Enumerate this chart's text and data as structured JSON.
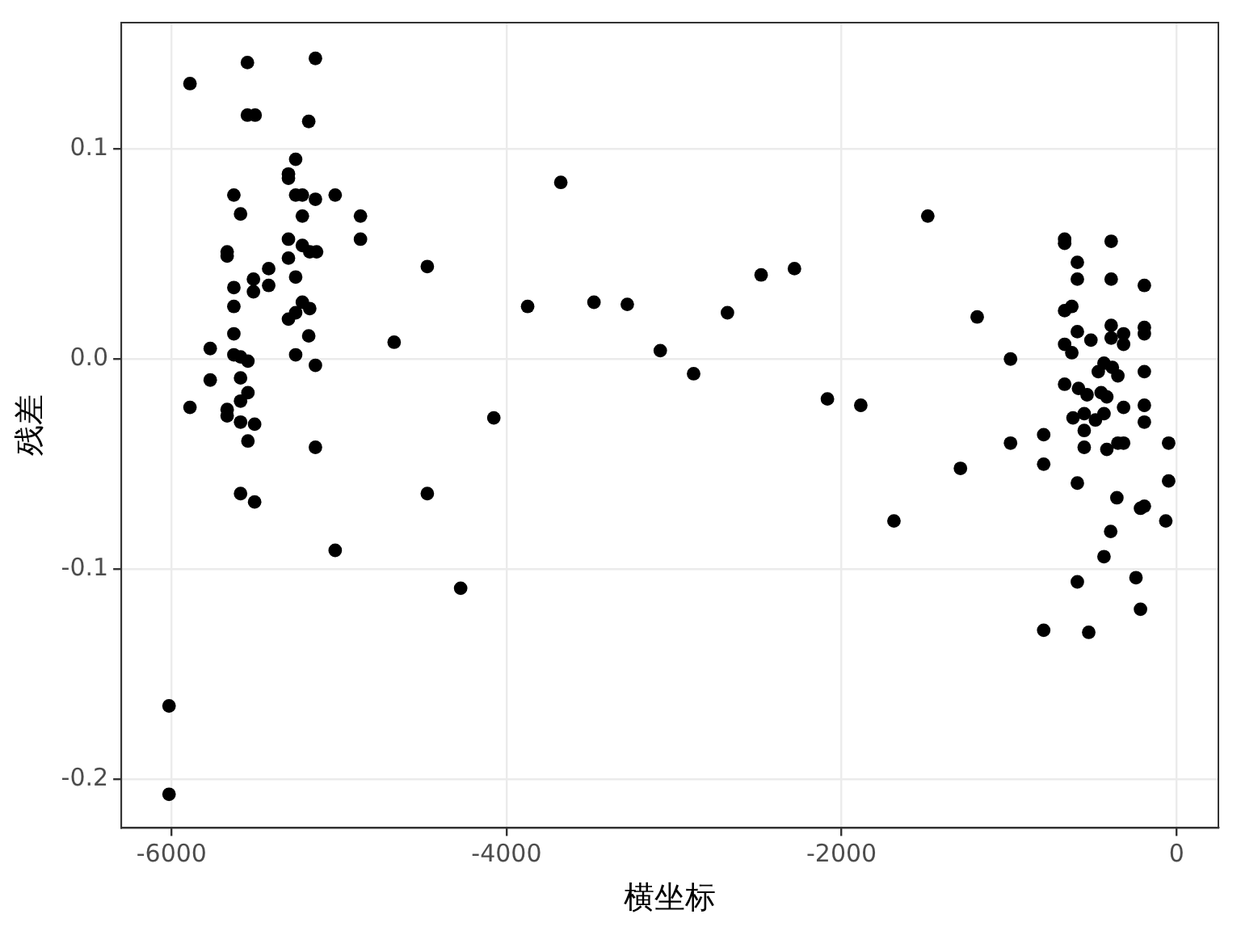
{
  "chart_data": {
    "type": "scatter",
    "xlabel": "横坐标",
    "ylabel": "残差",
    "xlim": [
      -6300,
      250
    ],
    "ylim": [
      -0.223,
      0.16
    ],
    "xticks": [
      -6000,
      -4000,
      -2000,
      0
    ],
    "yticks": [
      -0.2,
      -0.1,
      {
        "value": 0,
        "label": "0.0"
      },
      0.1
    ],
    "grid": true,
    "marker": "circle",
    "legend": false,
    "series": [
      {
        "color": "#000000",
        "x": [
          -6015,
          -6015,
          -5890,
          -5547,
          -5141,
          -5547,
          -5501,
          -5181,
          -5259,
          -5302,
          -5302,
          -5628,
          -5259,
          -5219,
          -5141,
          -5023,
          -5588,
          -5219,
          -4872,
          -4872,
          -5302,
          -5219,
          -5175,
          -5134,
          -5668,
          -5668,
          -5302,
          -5420,
          -5511,
          -5259,
          -5420,
          -5511,
          -5628,
          -5628,
          -5219,
          -5175,
          -5259,
          -5302,
          -5181,
          -5628,
          -5769,
          -5628,
          -5588,
          -5544,
          -5259,
          -5141,
          -5769,
          -5588,
          -5544,
          -5588,
          -5668,
          -5668,
          -5890,
          -5588,
          -5504,
          -5544,
          -5141,
          -5588,
          -5504,
          -5023,
          -4671,
          -4473,
          -4473,
          -4274,
          -4076,
          -3874,
          -3676,
          -3478,
          -3279,
          -3082,
          -2883,
          -2681,
          -2480,
          -2281,
          -2084,
          -1885,
          -1687,
          -1485,
          -1290,
          -1190,
          -991,
          -991,
          -793,
          -793,
          -793,
          -668,
          -668,
          -390,
          -592,
          -592,
          -390,
          -192,
          -668,
          -625,
          -390,
          -192,
          -192,
          -592,
          -511,
          -316,
          -316,
          -390,
          -668,
          -625,
          -433,
          -383,
          -192,
          -467,
          -350,
          -668,
          -585,
          -534,
          -450,
          -416,
          -316,
          -192,
          -618,
          -551,
          -484,
          -433,
          -551,
          -192,
          -551,
          -416,
          -350,
          -316,
          -47,
          -592,
          -47,
          -356,
          -215,
          -192,
          -64,
          -393,
          -433,
          -592,
          -242,
          -215,
          -524
        ],
        "values": [
          -0.165,
          -0.207,
          0.131,
          0.141,
          0.143,
          0.116,
          0.116,
          0.113,
          0.095,
          0.088,
          0.086,
          0.078,
          0.078,
          0.078,
          0.076,
          0.078,
          0.069,
          0.068,
          0.068,
          0.057,
          0.057,
          0.054,
          0.051,
          0.051,
          0.051,
          0.049,
          0.048,
          0.043,
          0.038,
          0.039,
          0.035,
          0.032,
          0.034,
          0.025,
          0.027,
          0.024,
          0.022,
          0.019,
          0.011,
          0.012,
          0.005,
          0.002,
          0.001,
          -0.001,
          0.002,
          -0.003,
          -0.01,
          -0.009,
          -0.016,
          -0.02,
          -0.024,
          -0.027,
          -0.023,
          -0.03,
          -0.031,
          -0.039,
          -0.042,
          -0.064,
          -0.068,
          -0.091,
          0.008,
          0.044,
          -0.064,
          -0.109,
          -0.028,
          0.025,
          0.084,
          0.027,
          0.026,
          0.004,
          -0.007,
          0.022,
          0.04,
          0.043,
          -0.019,
          -0.022,
          -0.077,
          0.068,
          -0.052,
          0.02,
          0.0,
          -0.04,
          -0.036,
          -0.05,
          -0.129,
          0.057,
          0.055,
          0.056,
          0.046,
          0.038,
          0.038,
          0.035,
          0.023,
          0.025,
          0.016,
          0.015,
          0.012,
          0.013,
          0.009,
          0.012,
          0.007,
          0.01,
          0.007,
          0.003,
          -0.002,
          -0.004,
          -0.006,
          -0.006,
          -0.008,
          -0.012,
          -0.014,
          -0.017,
          -0.016,
          -0.018,
          -0.023,
          -0.022,
          -0.028,
          -0.026,
          -0.029,
          -0.026,
          -0.034,
          -0.03,
          -0.042,
          -0.043,
          -0.04,
          -0.04,
          -0.04,
          -0.059,
          -0.058,
          -0.066,
          -0.071,
          -0.07,
          -0.077,
          -0.082,
          -0.094,
          -0.106,
          -0.104,
          -0.119,
          -0.13
        ]
      }
    ]
  }
}
